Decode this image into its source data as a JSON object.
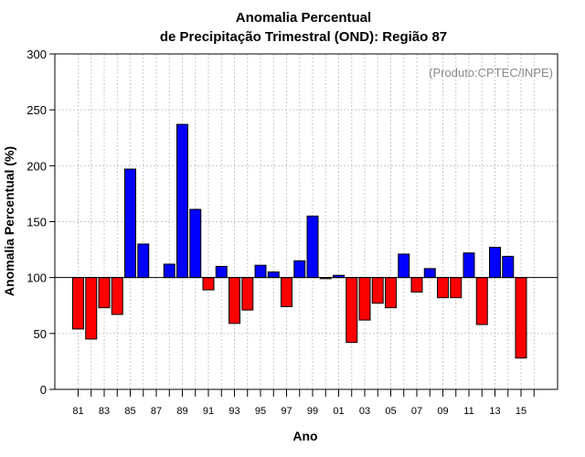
{
  "chart_data": {
    "type": "bar",
    "title_line1": "Anomalia Percentual",
    "title_line2": "de Precipitação Trimestral (OND): Região 87",
    "xlabel": "Ano",
    "ylabel": "Anomalia Percentual (%)",
    "annotation": "(Produto:CPTEC/INPE)",
    "baseline": 100,
    "ylim": [
      0,
      300
    ],
    "yticks": [
      0,
      50,
      100,
      150,
      200,
      250,
      300
    ],
    "xtick_labels": [
      "81",
      "83",
      "85",
      "87",
      "89",
      "91",
      "93",
      "95",
      "97",
      "99",
      "01",
      "03",
      "05",
      "07",
      "09",
      "11",
      "13",
      "15"
    ],
    "categories": [
      "81",
      "82",
      "83",
      "84",
      "85",
      "86",
      "87",
      "88",
      "89",
      "90",
      "91",
      "92",
      "93",
      "94",
      "95",
      "96",
      "97",
      "98",
      "99",
      "00",
      "01",
      "02",
      "03",
      "04",
      "05",
      "06",
      "07",
      "08",
      "09",
      "10",
      "11",
      "12",
      "13",
      "14",
      "15",
      "16"
    ],
    "values": [
      54,
      45,
      73,
      67,
      197,
      130,
      100,
      112,
      237,
      161,
      89,
      110,
      59,
      71,
      111,
      105,
      74,
      115,
      155,
      99,
      102,
      42,
      62,
      77,
      73,
      121,
      87,
      108,
      82,
      82,
      122,
      58,
      127,
      119,
      28,
      100
    ],
    "colors": {
      "above": "#0000ff",
      "below": "#ff0000",
      "grid": "#c8c8c8",
      "annotation": "#8a8a8a"
    }
  }
}
